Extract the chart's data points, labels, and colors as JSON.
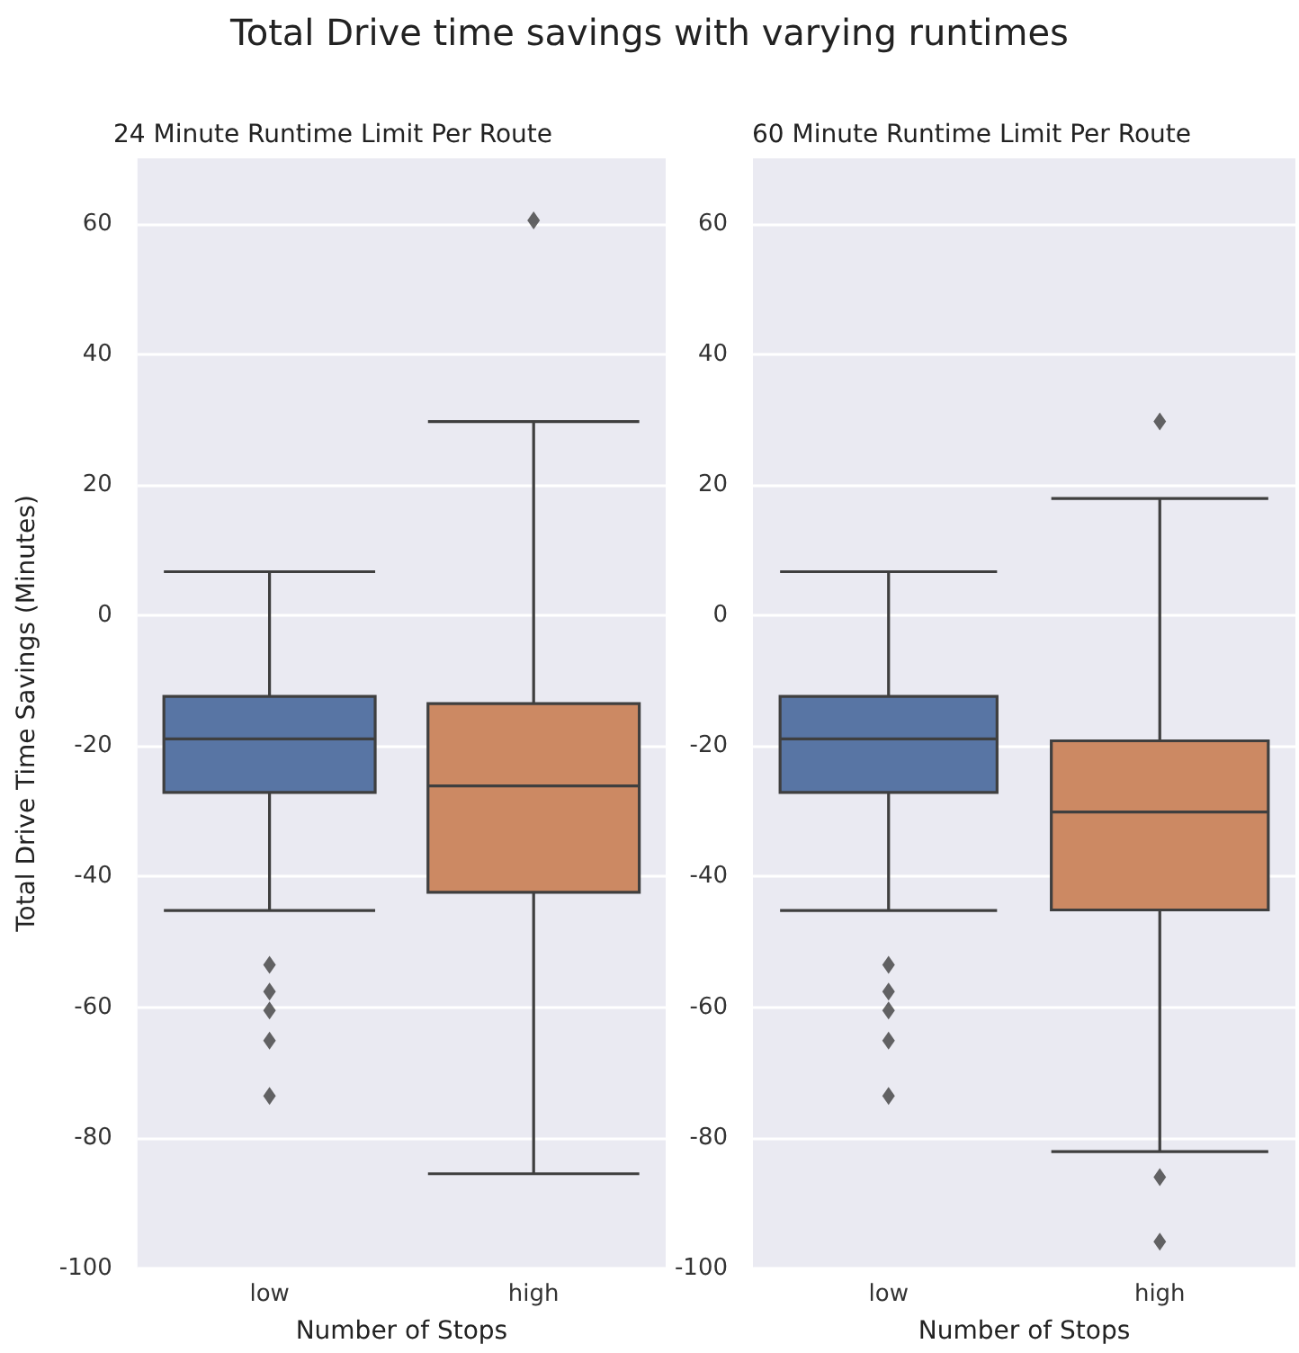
{
  "chart_data": [
    {
      "type": "box",
      "title": "Total Drive time savings with varying runtimes",
      "subtitle": "24 Minute Runtime Limit Per Route",
      "xlabel": "Number of Stops",
      "ylabel": "Total Drive Time Savings (Minutes)",
      "categories": [
        "low",
        "high"
      ],
      "colors": [
        "#5875a4",
        "#cc8963"
      ],
      "boxes": [
        {
          "low": -45.2,
          "q1": -27.1,
          "median": -18.9,
          "q3": -12.4,
          "high": 6.7,
          "outliers": [
            -53.5,
            -57.6,
            -60.5,
            -65.1,
            -73.6
          ]
        },
        {
          "low": -85.5,
          "q1": -42.4,
          "median": -26.1,
          "q3": -13.5,
          "high": 29.7,
          "outliers": [
            60.5
          ]
        }
      ],
      "ylim": [
        -100,
        70
      ],
      "yticks": [
        -100,
        -80,
        -60,
        -40,
        -20,
        0,
        20,
        40,
        60
      ],
      "grid": "y",
      "marker": "diamond"
    },
    {
      "type": "box",
      "subtitle": "60 Minute Runtime Limit Per Route",
      "xlabel": "Number of Stops",
      "categories": [
        "low",
        "high"
      ],
      "colors": [
        "#5875a4",
        "#cc8963"
      ],
      "boxes": [
        {
          "low": -45.2,
          "q1": -27.1,
          "median": -18.9,
          "q3": -12.4,
          "high": 6.7,
          "outliers": [
            -53.5,
            -57.6,
            -60.5,
            -65.1,
            -73.6
          ]
        },
        {
          "low": -82.1,
          "q1": -45.1,
          "median": -30.1,
          "q3": -19.2,
          "high": 17.9,
          "outliers": [
            29.7,
            -86.0,
            -95.9
          ]
        }
      ],
      "ylim": [
        -100,
        70
      ],
      "yticks": [
        -100,
        -80,
        -60,
        -40,
        -20,
        0,
        20,
        40,
        60
      ],
      "grid": "y",
      "marker": "diamond"
    }
  ]
}
